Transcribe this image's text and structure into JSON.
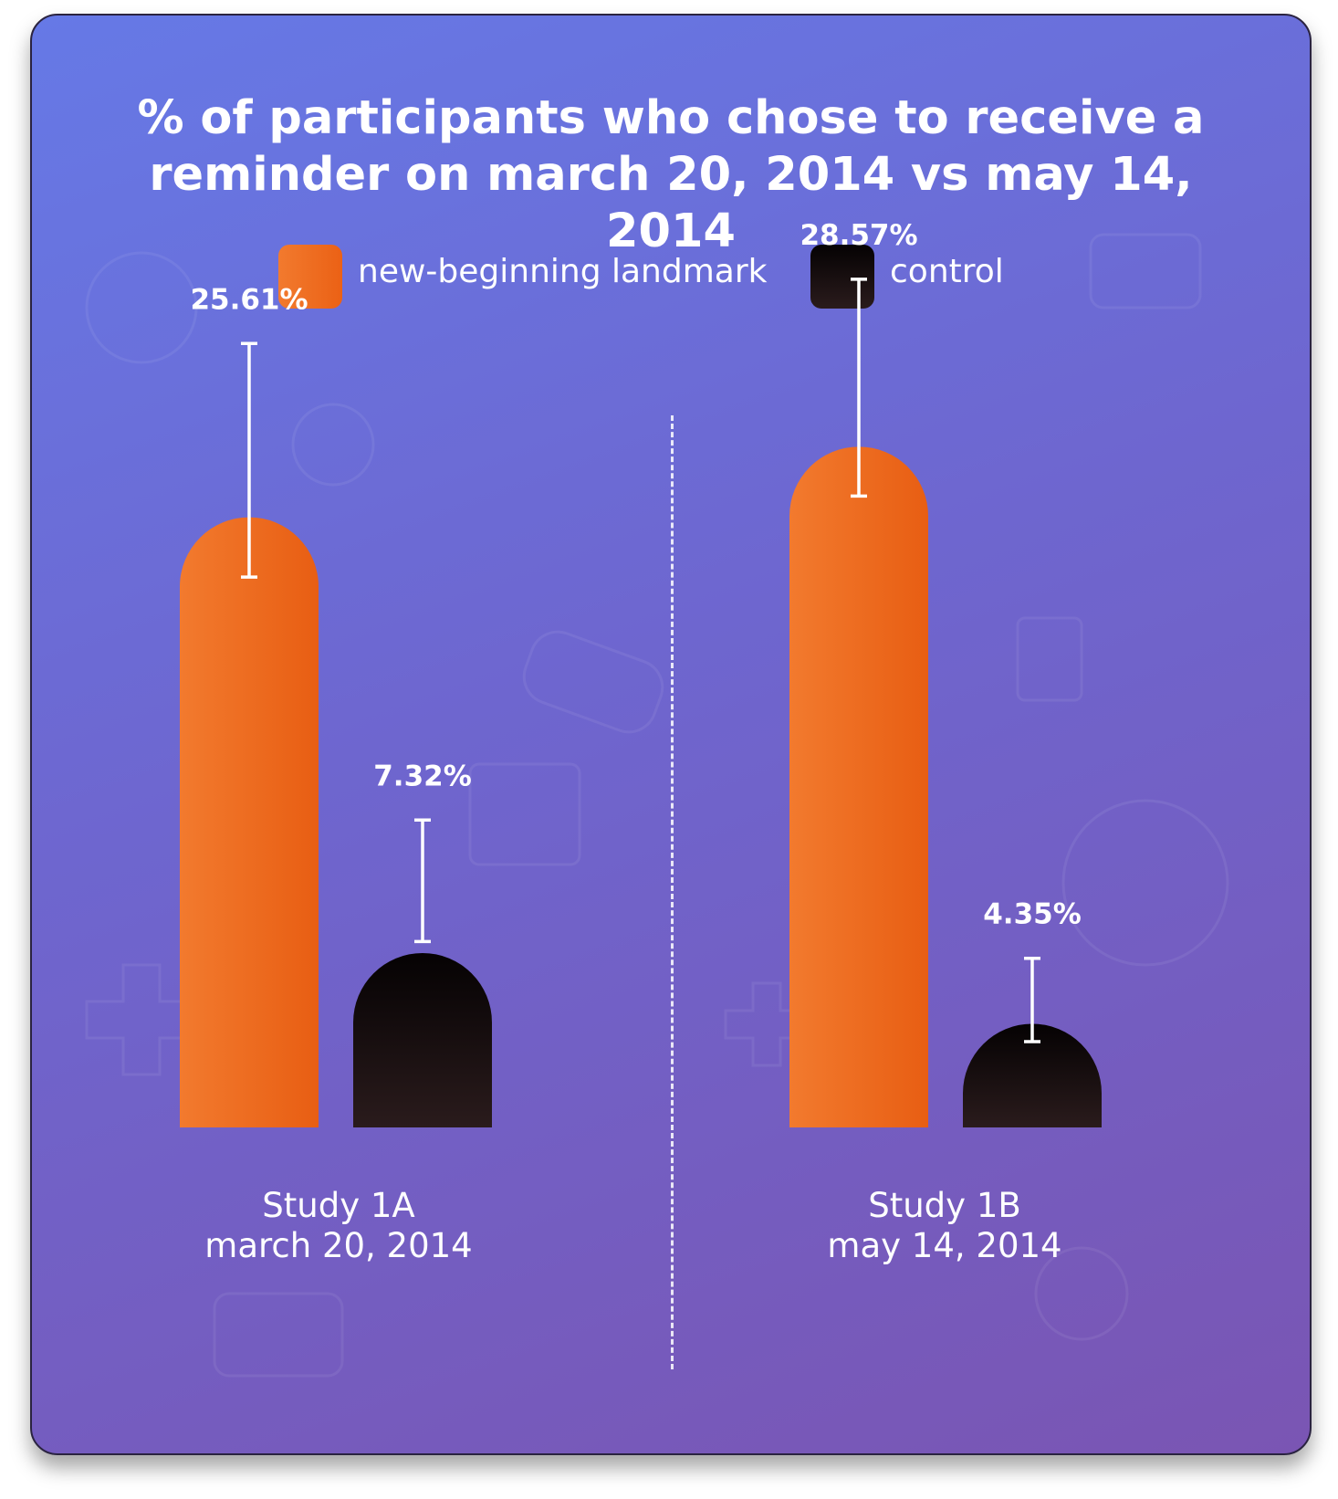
{
  "chart_data": {
    "type": "bar",
    "title": "% of participants who chose to receive a reminder on march 20, 2014 vs may 14, 2014",
    "legend": [
      {
        "name": "new-beginning landmark",
        "color": "#f06a1e"
      },
      {
        "name": "control",
        "color": "#1b1012"
      }
    ],
    "groups": [
      {
        "study": "Study 1A",
        "date": "march 20, 2014"
      },
      {
        "study": "Study 1B",
        "date": "may 14, 2014"
      }
    ],
    "series": [
      {
        "name": "new-beginning landmark",
        "values": [
          25.61,
          28.57
        ],
        "labels": [
          "25.61%",
          "28.57%"
        ],
        "error_upper": [
          32.9,
          35.6
        ],
        "error_lower": [
          23.1,
          26.5
        ]
      },
      {
        "name": "control",
        "values": [
          7.32,
          4.35
        ],
        "labels": [
          "7.32%",
          "4.35%"
        ],
        "error_upper": [
          12.9,
          7.1
        ],
        "error_lower": [
          7.8,
          3.6
        ]
      }
    ],
    "ylim": [
      0,
      40
    ],
    "xlabel": "",
    "ylabel": ""
  }
}
